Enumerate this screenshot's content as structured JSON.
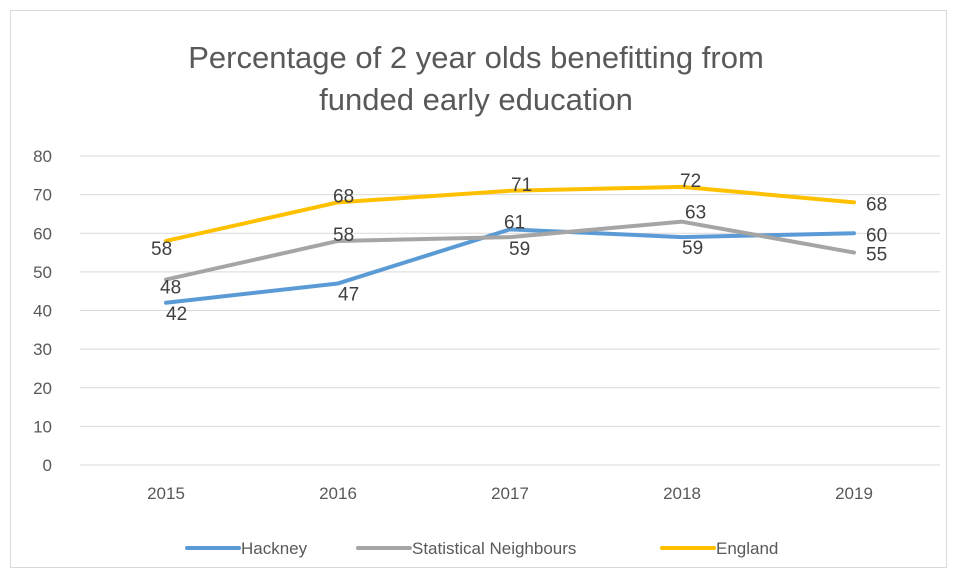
{
  "chart_data": {
    "type": "line",
    "title_lines": [
      "Percentage of 2 year olds benefitting from",
      "funded early education"
    ],
    "xlabel": "",
    "ylabel": "",
    "categories": [
      "2015",
      "2016",
      "2017",
      "2018",
      "2019"
    ],
    "ylim": [
      0,
      80
    ],
    "yticks": [
      "0",
      "10",
      "20",
      "30",
      "40",
      "50",
      "60",
      "70",
      "80"
    ],
    "grid": true,
    "legend_position": "bottom",
    "series": [
      {
        "name": "Hackney",
        "values": [
          42,
          47,
          61,
          59,
          60
        ],
        "labels": [
          "42",
          "47",
          "61",
          "59",
          "60"
        ],
        "color": "#5B9BD5"
      },
      {
        "name": "Statistical Neighbours",
        "values": [
          48,
          58,
          59,
          63,
          55
        ],
        "labels": [
          "48",
          "58",
          "59",
          "63",
          "55"
        ],
        "color": "#A5A5A5"
      },
      {
        "name": "England",
        "values": [
          58,
          68,
          71,
          72,
          68
        ],
        "labels": [
          "58",
          "68",
          "71",
          "72",
          "68"
        ],
        "color": "#FFC000"
      }
    ]
  }
}
